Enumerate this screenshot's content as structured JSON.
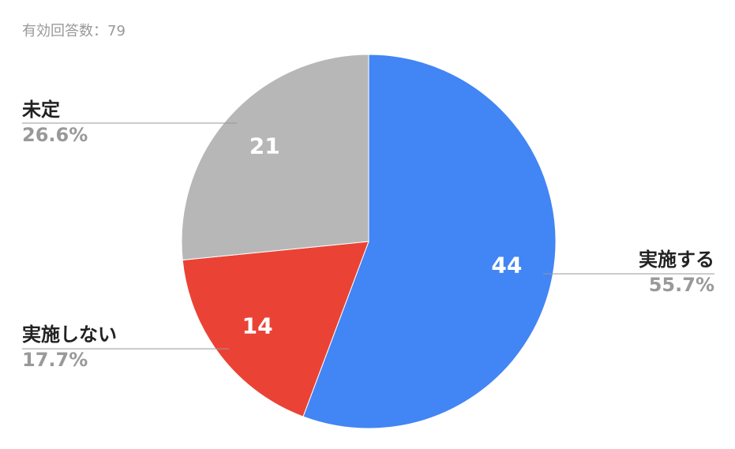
{
  "chart_data": {
    "type": "pie",
    "title": "有効回答数：79",
    "categories": [
      "実施する",
      "実施しない",
      "未定"
    ],
    "values": [
      44,
      14,
      21
    ],
    "percent_labels": [
      "55.7%",
      "17.7%",
      "26.6%"
    ],
    "colors": [
      "#4285f4",
      "#ea4335",
      "#b7b7b7"
    ]
  }
}
